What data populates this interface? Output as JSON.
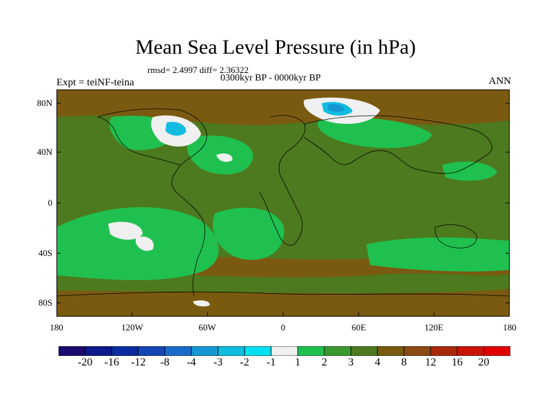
{
  "title": "Mean Sea Level Pressure (in hPa)",
  "stats": "rmsd= 2.4997 diff= 2.36322",
  "period": "0300kyr BP - 0000kyr BP",
  "experiment": "Expt = teiNF-teina",
  "season": "ANN",
  "axes": {
    "lat_labels": [
      "80N",
      "40N",
      "0",
      "40S",
      "80S"
    ],
    "lon_labels": [
      "180",
      "120W",
      "60W",
      "0",
      "60E",
      "120E",
      "180"
    ]
  },
  "colorbar": {
    "labels": [
      "-20",
      "-16",
      "-12",
      "-8",
      "-4",
      "-3",
      "-2",
      "-1",
      "1",
      "2",
      "3",
      "4",
      "8",
      "12",
      "16",
      "20"
    ],
    "colors": [
      "#1a0a6e",
      "#0a1a8a",
      "#0b2c9e",
      "#1446b4",
      "#1a6cc8",
      "#1696d2",
      "#10bce0",
      "#00e0f0",
      "#f0f0f0",
      "#20c050",
      "#3a9a30",
      "#4d7a1e",
      "#7a5a10",
      "#8b4a14",
      "#a8280c",
      "#c81408",
      "#e00000"
    ]
  },
  "field_colors": {
    "background": "#7a5a10",
    "olive": "#4d7a1e",
    "green": "#20c050",
    "white": "#f0f0f0",
    "cyan": "#10bce0",
    "blue": "#1696d2"
  }
}
